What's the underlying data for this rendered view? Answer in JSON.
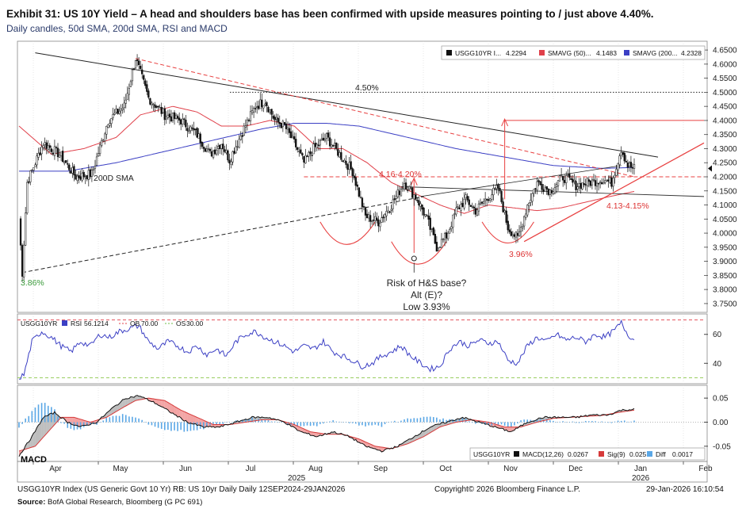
{
  "header": {
    "title": "Exhibit 31: US 10Y Yield – A head and shoulders base has been confirmed with upside measures pointing to / just above 4.40%.",
    "subtitle": "Daily candles, 50d SMA, 200d SMA, RSI and MACD"
  },
  "footer": {
    "left": "USGG10YR Index (US Generic Govt 10 Yr) RB: US 10yr Daily Daily 12SEP2024-29JAN2026",
    "middle": "Copyright© 2026 Bloomberg Finance L.P.",
    "right": "29-Jan-2026 16:10:54",
    "source_label": "Source:",
    "source_text": " BofA Global Research, Bloomberg (G PC 691)"
  },
  "colors": {
    "candle": "#111111",
    "sma50": "#e0404a",
    "sma200": "#3b3fc4",
    "rsi": "#3b3fc4",
    "macd": "#111111",
    "signal": "#d63a3a",
    "diff": "#5aa7e6",
    "trend": "#e84040",
    "green_label": "#3a9a3a"
  },
  "chart_data": [
    {
      "type": "candlestick",
      "name": "price",
      "x": [
        "Apr",
        "May",
        "Jun",
        "Jul",
        "Aug",
        "Sep",
        "Oct",
        "Nov",
        "Dec",
        "Jan",
        "Feb"
      ],
      "year_labels": [
        "2025",
        "2026"
      ],
      "yticks": [
        3.75,
        3.8,
        3.85,
        3.9,
        3.95,
        4.0,
        4.05,
        4.1,
        4.15,
        4.2,
        4.25,
        4.3,
        4.35,
        4.4,
        4.45,
        4.5,
        4.55,
        4.6,
        4.65
      ],
      "ytick_labels": [
        "3.7500",
        "3.8000",
        "3.8500",
        "3.9000",
        "3.9500",
        "4.0000",
        "4.0500",
        "4.1000",
        "4.1500",
        "4.2000",
        "4.2500",
        "4.3000",
        "4.3500",
        "4.4000",
        "4.4500",
        "4.5000",
        "4.5500",
        "4.6000",
        "4.6500"
      ],
      "ylim": [
        3.73,
        4.67
      ],
      "legend": [
        {
          "label": "USGG10YR I...",
          "value": "4.2294"
        },
        {
          "label": "SMAVG (50)...",
          "value": "4.1483"
        },
        {
          "label": "SMAVG (200...",
          "value": "4.2328"
        }
      ],
      "annotations": {
        "level_450": "4.50%",
        "sma200_label": "200D SMA",
        "zone_label": "4.16-4.20%",
        "support_label": "4.13-4.15%",
        "low_label": "3.96%",
        "start_low": "3.86%",
        "risk_1": "Risk of H&S base?",
        "risk_2": "Alt (E)?",
        "risk_3": "Low 3.93%"
      },
      "close_anchors": [
        [
          0,
          4.05
        ],
        [
          2,
          3.86
        ],
        [
          5,
          4.18
        ],
        [
          15,
          4.32
        ],
        [
          25,
          4.28
        ],
        [
          35,
          4.2
        ],
        [
          45,
          4.21
        ],
        [
          55,
          4.4
        ],
        [
          65,
          4.45
        ],
        [
          72,
          4.62
        ],
        [
          80,
          4.48
        ],
        [
          90,
          4.42
        ],
        [
          100,
          4.4
        ],
        [
          110,
          4.35
        ],
        [
          118,
          4.28
        ],
        [
          125,
          4.32
        ],
        [
          130,
          4.26
        ],
        [
          138,
          4.36
        ],
        [
          146,
          4.45
        ],
        [
          152,
          4.47
        ],
        [
          158,
          4.4
        ],
        [
          164,
          4.38
        ],
        [
          170,
          4.32
        ],
        [
          176,
          4.25
        ],
        [
          182,
          4.3
        ],
        [
          190,
          4.34
        ],
        [
          198,
          4.28
        ],
        [
          206,
          4.22
        ],
        [
          214,
          4.06
        ],
        [
          222,
          4.04
        ],
        [
          230,
          4.1
        ],
        [
          238,
          4.18
        ],
        [
          246,
          4.12
        ],
        [
          252,
          4.05
        ],
        [
          258,
          3.95
        ],
        [
          264,
          3.99
        ],
        [
          270,
          4.08
        ],
        [
          276,
          4.12
        ],
        [
          282,
          4.08
        ],
        [
          290,
          4.13
        ],
        [
          296,
          4.16
        ],
        [
          302,
          4.02
        ],
        [
          308,
          3.98
        ],
        [
          314,
          4.1
        ],
        [
          320,
          4.18
        ],
        [
          328,
          4.15
        ],
        [
          336,
          4.2
        ],
        [
          344,
          4.17
        ],
        [
          352,
          4.18
        ],
        [
          360,
          4.19
        ],
        [
          366,
          4.18
        ],
        [
          372,
          4.3
        ],
        [
          376,
          4.24
        ],
        [
          380,
          4.23
        ]
      ],
      "sma50_anchors": [
        [
          0,
          4.38
        ],
        [
          20,
          4.28
        ],
        [
          40,
          4.3
        ],
        [
          60,
          4.34
        ],
        [
          75,
          4.42
        ],
        [
          95,
          4.45
        ],
        [
          110,
          4.43
        ],
        [
          125,
          4.38
        ],
        [
          140,
          4.38
        ],
        [
          155,
          4.4
        ],
        [
          170,
          4.38
        ],
        [
          185,
          4.3
        ],
        [
          200,
          4.3
        ],
        [
          215,
          4.25
        ],
        [
          230,
          4.18
        ],
        [
          245,
          4.14
        ],
        [
          260,
          4.1
        ],
        [
          275,
          4.07
        ],
        [
          290,
          4.1
        ],
        [
          305,
          4.09
        ],
        [
          320,
          4.08
        ],
        [
          335,
          4.09
        ],
        [
          350,
          4.11
        ],
        [
          365,
          4.13
        ],
        [
          380,
          4.148
        ]
      ],
      "sma200_anchors": [
        [
          0,
          4.22
        ],
        [
          30,
          4.22
        ],
        [
          60,
          4.25
        ],
        [
          90,
          4.29
        ],
        [
          120,
          4.33
        ],
        [
          150,
          4.37
        ],
        [
          170,
          4.39
        ],
        [
          190,
          4.39
        ],
        [
          210,
          4.38
        ],
        [
          240,
          4.34
        ],
        [
          270,
          4.3
        ],
        [
          300,
          4.27
        ],
        [
          330,
          4.24
        ],
        [
          360,
          4.23
        ],
        [
          380,
          4.233
        ]
      ],
      "n_days": 381
    },
    {
      "type": "line",
      "name": "rsi",
      "legend": [
        {
          "label": "USGG10YR",
          "value": ""
        },
        {
          "label": "RSI",
          "value": "56.1214"
        },
        {
          "label": "OB",
          "value": "70.00"
        },
        {
          "label": "OS",
          "value": "30.00"
        }
      ],
      "yticks": [
        40,
        60
      ],
      "ylim": [
        27,
        73
      ],
      "ob": 70,
      "os": 30,
      "anchors": [
        [
          0,
          30
        ],
        [
          3,
          32
        ],
        [
          8,
          55
        ],
        [
          14,
          62
        ],
        [
          20,
          58
        ],
        [
          26,
          52
        ],
        [
          32,
          48
        ],
        [
          38,
          55
        ],
        [
          44,
          52
        ],
        [
          50,
          60
        ],
        [
          56,
          58
        ],
        [
          62,
          62
        ],
        [
          68,
          64
        ],
        [
          74,
          66
        ],
        [
          80,
          55
        ],
        [
          86,
          50
        ],
        [
          92,
          55
        ],
        [
          98,
          52
        ],
        [
          104,
          48
        ],
        [
          110,
          52
        ],
        [
          116,
          46
        ],
        [
          122,
          50
        ],
        [
          128,
          45
        ],
        [
          134,
          55
        ],
        [
          140,
          60
        ],
        [
          146,
          62
        ],
        [
          152,
          58
        ],
        [
          158,
          55
        ],
        [
          164,
          52
        ],
        [
          170,
          48
        ],
        [
          176,
          52
        ],
        [
          182,
          50
        ],
        [
          188,
          55
        ],
        [
          194,
          48
        ],
        [
          200,
          45
        ],
        [
          206,
          42
        ],
        [
          212,
          38
        ],
        [
          218,
          40
        ],
        [
          224,
          45
        ],
        [
          230,
          48
        ],
        [
          236,
          52
        ],
        [
          242,
          45
        ],
        [
          248,
          40
        ],
        [
          254,
          36
        ],
        [
          260,
          38
        ],
        [
          266,
          50
        ],
        [
          272,
          55
        ],
        [
          278,
          52
        ],
        [
          284,
          56
        ],
        [
          290,
          54
        ],
        [
          296,
          55
        ],
        [
          302,
          42
        ],
        [
          308,
          40
        ],
        [
          314,
          52
        ],
        [
          320,
          58
        ],
        [
          326,
          55
        ],
        [
          332,
          60
        ],
        [
          338,
          56
        ],
        [
          344,
          58
        ],
        [
          350,
          55
        ],
        [
          356,
          60
        ],
        [
          362,
          58
        ],
        [
          368,
          63
        ],
        [
          372,
          68
        ],
        [
          376,
          60
        ],
        [
          380,
          56.1
        ]
      ]
    },
    {
      "type": "line",
      "name": "macd",
      "panel_label": "MACD",
      "legend": [
        {
          "label": "USGG10YR",
          "value": ""
        },
        {
          "label": "MACD(12,26)",
          "value": "0.0267"
        },
        {
          "label": "Sig(9)",
          "value": "0.025"
        },
        {
          "label": "Diff",
          "value": "0.0017"
        }
      ],
      "yticks": [
        0.05,
        0.0,
        -0.05
      ],
      "ytick_labels": [
        "0.05",
        "0.00",
        "-0.05"
      ],
      "ylim": [
        -0.075,
        0.07
      ],
      "macd_anchors": [
        [
          0,
          -0.07
        ],
        [
          8,
          -0.03
        ],
        [
          15,
          0.01
        ],
        [
          22,
          0.02
        ],
        [
          30,
          0.0
        ],
        [
          38,
          -0.01
        ],
        [
          48,
          0.0
        ],
        [
          58,
          0.03
        ],
        [
          66,
          0.05
        ],
        [
          74,
          0.055
        ],
        [
          84,
          0.04
        ],
        [
          94,
          0.02
        ],
        [
          104,
          0.0
        ],
        [
          114,
          -0.01
        ],
        [
          124,
          -0.01
        ],
        [
          134,
          0.0
        ],
        [
          144,
          0.01
        ],
        [
          154,
          0.01
        ],
        [
          164,
          0.0
        ],
        [
          174,
          -0.02
        ],
        [
          184,
          -0.03
        ],
        [
          194,
          -0.02
        ],
        [
          204,
          -0.03
        ],
        [
          214,
          -0.05
        ],
        [
          224,
          -0.06
        ],
        [
          234,
          -0.05
        ],
        [
          244,
          -0.03
        ],
        [
          254,
          -0.01
        ],
        [
          264,
          0.0
        ],
        [
          274,
          0.01
        ],
        [
          284,
          0.0
        ],
        [
          294,
          -0.01
        ],
        [
          304,
          -0.02
        ],
        [
          314,
          0.0
        ],
        [
          324,
          0.01
        ],
        [
          334,
          0.01
        ],
        [
          344,
          0.01
        ],
        [
          354,
          0.015
        ],
        [
          364,
          0.015
        ],
        [
          372,
          0.025
        ],
        [
          380,
          0.0267
        ]
      ],
      "signal_anchors": [
        [
          0,
          -0.06
        ],
        [
          10,
          -0.05
        ],
        [
          18,
          -0.02
        ],
        [
          26,
          0.01
        ],
        [
          34,
          0.01
        ],
        [
          44,
          0.0
        ],
        [
          54,
          0.01
        ],
        [
          64,
          0.03
        ],
        [
          72,
          0.045
        ],
        [
          80,
          0.05
        ],
        [
          90,
          0.045
        ],
        [
          100,
          0.025
        ],
        [
          110,
          0.01
        ],
        [
          120,
          -0.005
        ],
        [
          130,
          -0.005
        ],
        [
          140,
          0.0
        ],
        [
          150,
          0.005
        ],
        [
          160,
          0.005
        ],
        [
          170,
          -0.005
        ],
        [
          180,
          -0.02
        ],
        [
          190,
          -0.025
        ],
        [
          200,
          -0.025
        ],
        [
          210,
          -0.035
        ],
        [
          220,
          -0.05
        ],
        [
          230,
          -0.055
        ],
        [
          240,
          -0.045
        ],
        [
          250,
          -0.03
        ],
        [
          260,
          -0.01
        ],
        [
          270,
          0.0
        ],
        [
          280,
          0.005
        ],
        [
          290,
          0.0
        ],
        [
          300,
          -0.01
        ],
        [
          310,
          -0.01
        ],
        [
          320,
          0.0
        ],
        [
          330,
          0.008
        ],
        [
          340,
          0.01
        ],
        [
          350,
          0.012
        ],
        [
          360,
          0.014
        ],
        [
          370,
          0.02
        ],
        [
          380,
          0.025
        ]
      ]
    }
  ]
}
